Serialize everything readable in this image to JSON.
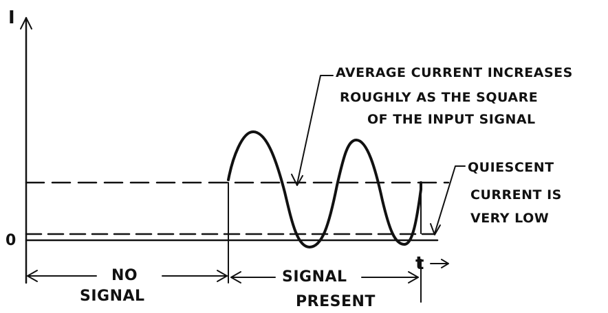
{
  "axes": {
    "y_label": "I",
    "origin_label": "0",
    "x_label": "t"
  },
  "regions": {
    "no_signal_line1": "NO",
    "no_signal_line2": "SIGNAL",
    "signal_present_line1": "SIGNAL",
    "signal_present_line2": "PRESENT"
  },
  "annotations": {
    "average_current": [
      "AVERAGE CURRENT INCREASES",
      "ROUGHLY AS THE SQUARE",
      "OF THE INPUT SIGNAL"
    ],
    "quiescent_current": [
      "QUIESCENT",
      "CURRENT IS",
      "VERY LOW"
    ]
  },
  "colors": {
    "ink": "#111111",
    "paper": "#ffffff"
  }
}
